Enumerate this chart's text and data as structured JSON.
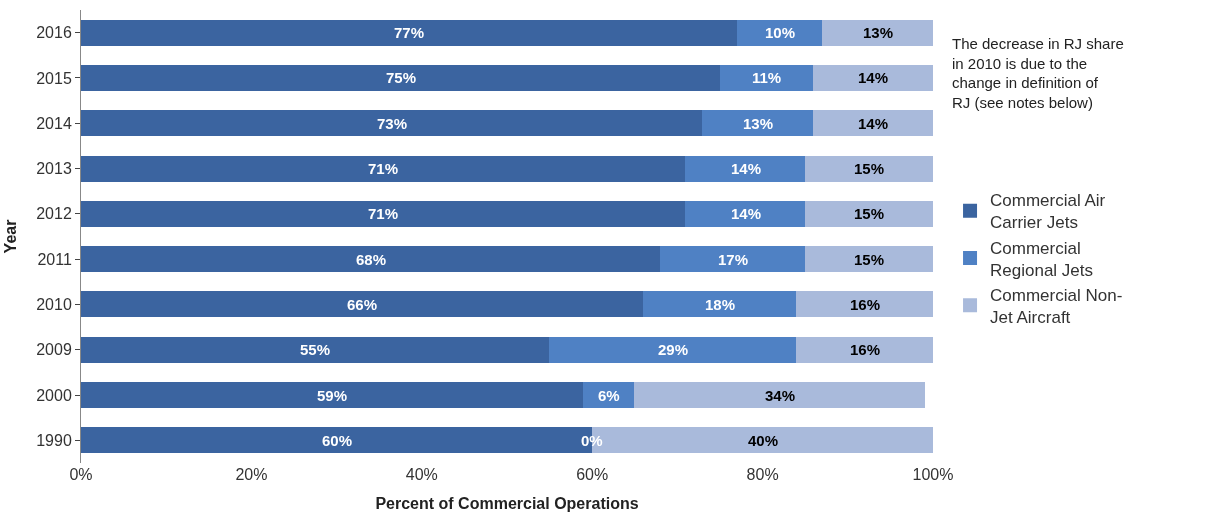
{
  "chart_data": {
    "type": "bar",
    "orientation": "horizontal",
    "stacked": true,
    "categories": [
      "2016",
      "2015",
      "2014",
      "2013",
      "2012",
      "2011",
      "2010",
      "2009",
      "2000",
      "1990"
    ],
    "series": [
      {
        "name": "Commercial Air Carrier Jets",
        "color": "#3b64a0",
        "values": [
          77,
          75,
          73,
          71,
          71,
          68,
          66,
          55,
          59,
          60
        ],
        "value_labels": [
          "77%",
          "75%",
          "73%",
          "71%",
          "71%",
          "68%",
          "66%",
          "55%",
          "59%",
          "60%"
        ]
      },
      {
        "name": "Commercial Regional Jets",
        "color": "#4f81c4",
        "values": [
          10,
          11,
          13,
          14,
          14,
          17,
          18,
          29,
          6,
          0
        ],
        "value_labels": [
          "10%",
          "11%",
          "13%",
          "14%",
          "14%",
          "17%",
          "18%",
          "29%",
          "6%",
          "0%"
        ]
      },
      {
        "name": "Commercial Non-Jet Aircraft",
        "color": "#a9badb",
        "values": [
          13,
          14,
          14,
          15,
          15,
          15,
          16,
          16,
          34,
          40
        ],
        "value_labels": [
          "13%",
          "14%",
          "14%",
          "15%",
          "15%",
          "15%",
          "16%",
          "16%",
          "34%",
          "40%"
        ]
      }
    ],
    "xlim": [
      0,
      100
    ],
    "xticks": [
      {
        "value": 0,
        "label": "0%"
      },
      {
        "value": 20,
        "label": "20%"
      },
      {
        "value": 40,
        "label": "40%"
      },
      {
        "value": 60,
        "label": "60%"
      },
      {
        "value": 80,
        "label": "80%"
      },
      {
        "value": 100,
        "label": "100%"
      }
    ],
    "xlabel": "Percent of Commercial Operations",
    "ylabel": "Year",
    "annotations": [
      "The decrease in RJ share in 2010 is due to the change in definition of RJ (see notes below)"
    ],
    "legend": "right"
  }
}
